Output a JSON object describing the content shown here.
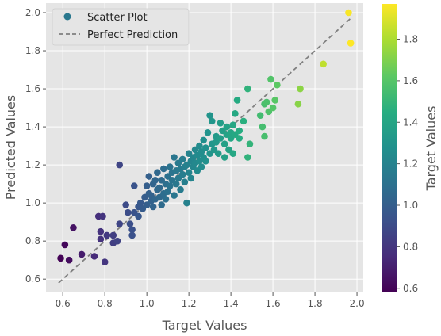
{
  "chart_data": {
    "type": "scatter",
    "xlabel": "Target Values",
    "ylabel": "Predicted Values",
    "xlim": [
      0.52,
      2.03
    ],
    "ylim": [
      0.53,
      2.05
    ],
    "x_ticks": [
      0.6,
      0.8,
      1.0,
      1.2,
      1.4,
      1.6,
      1.8,
      2.0
    ],
    "y_ticks": [
      0.6,
      0.8,
      1.0,
      1.2,
      1.4,
      1.6,
      1.8,
      2.0
    ],
    "grid": true,
    "legend_position": "top-left",
    "legend": [
      "Scatter Plot",
      "Perfect Prediction"
    ],
    "series": [
      {
        "name": "Scatter Plot",
        "type": "scatter",
        "colormap": "viridis",
        "color_by": "x",
        "points": [
          [
            0.59,
            0.71
          ],
          [
            0.61,
            0.78
          ],
          [
            0.63,
            0.7
          ],
          [
            0.65,
            0.87
          ],
          [
            0.69,
            0.73
          ],
          [
            0.75,
            0.72
          ],
          [
            0.77,
            0.93
          ],
          [
            0.78,
            0.85
          ],
          [
            0.78,
            0.81
          ],
          [
            0.79,
            0.93
          ],
          [
            0.8,
            0.69
          ],
          [
            0.81,
            0.83
          ],
          [
            0.84,
            0.83
          ],
          [
            0.84,
            0.79
          ],
          [
            0.86,
            0.8
          ],
          [
            0.87,
            0.89
          ],
          [
            0.87,
            1.2
          ],
          [
            0.9,
            0.99
          ],
          [
            0.91,
            0.95
          ],
          [
            0.92,
            0.89
          ],
          [
            0.93,
            0.86
          ],
          [
            0.93,
            0.83
          ],
          [
            0.94,
            1.09
          ],
          [
            0.94,
            0.95
          ],
          [
            0.96,
            0.93
          ],
          [
            0.96,
            0.98
          ],
          [
            0.97,
            1.0
          ],
          [
            0.98,
            0.97
          ],
          [
            0.99,
            1.03
          ],
          [
            1.0,
            1.09
          ],
          [
            1.0,
            0.99
          ],
          [
            1.01,
            1.05
          ],
          [
            1.01,
            1.14
          ],
          [
            1.02,
            1.01
          ],
          [
            1.02,
            1.04
          ],
          [
            1.03,
            0.98
          ],
          [
            1.03,
            1.1
          ],
          [
            1.04,
            1.12
          ],
          [
            1.04,
            1.02
          ],
          [
            1.05,
            1.07
          ],
          [
            1.05,
            1.16
          ],
          [
            1.06,
            1.03
          ],
          [
            1.06,
            1.08
          ],
          [
            1.07,
            0.99
          ],
          [
            1.07,
            1.12
          ],
          [
            1.08,
            1.05
          ],
          [
            1.08,
            1.18
          ],
          [
            1.09,
            1.1
          ],
          [
            1.09,
            1.02
          ],
          [
            1.1,
            1.14
          ],
          [
            1.1,
            1.06
          ],
          [
            1.11,
            1.19
          ],
          [
            1.11,
            1.09
          ],
          [
            1.12,
            1.12
          ],
          [
            1.12,
            1.16
          ],
          [
            1.13,
            1.24
          ],
          [
            1.13,
            1.04
          ],
          [
            1.14,
            1.1
          ],
          [
            1.14,
            1.17
          ],
          [
            1.15,
            1.13
          ],
          [
            1.15,
            1.21
          ],
          [
            1.16,
            1.07
          ],
          [
            1.16,
            1.18
          ],
          [
            1.17,
            1.15
          ],
          [
            1.17,
            1.23
          ],
          [
            1.18,
            1.19
          ],
          [
            1.18,
            1.11
          ],
          [
            1.19,
            1.2
          ],
          [
            1.19,
            1.0
          ],
          [
            1.2,
            1.26
          ],
          [
            1.2,
            1.16
          ],
          [
            1.21,
            1.22
          ],
          [
            1.21,
            1.13
          ],
          [
            1.22,
            1.24
          ],
          [
            1.22,
            1.19
          ],
          [
            1.23,
            1.28
          ],
          [
            1.23,
            1.21
          ],
          [
            1.24,
            1.17
          ],
          [
            1.24,
            1.25
          ],
          [
            1.25,
            1.3
          ],
          [
            1.25,
            1.22
          ],
          [
            1.26,
            1.27
          ],
          [
            1.26,
            1.19
          ],
          [
            1.27,
            1.24
          ],
          [
            1.27,
            1.33
          ],
          [
            1.28,
            1.29
          ],
          [
            1.28,
            1.22
          ],
          [
            1.29,
            1.37
          ],
          [
            1.3,
            1.26
          ],
          [
            1.3,
            1.46
          ],
          [
            1.31,
            1.31
          ],
          [
            1.31,
            1.43
          ],
          [
            1.32,
            1.28
          ],
          [
            1.33,
            1.35
          ],
          [
            1.33,
            1.32
          ],
          [
            1.34,
            1.26
          ],
          [
            1.35,
            1.34
          ],
          [
            1.35,
            1.42
          ],
          [
            1.36,
            1.38
          ],
          [
            1.37,
            1.31
          ],
          [
            1.37,
            1.24
          ],
          [
            1.38,
            1.36
          ],
          [
            1.38,
            1.4
          ],
          [
            1.39,
            1.28
          ],
          [
            1.4,
            1.34
          ],
          [
            1.4,
            1.37
          ],
          [
            1.41,
            1.26
          ],
          [
            1.41,
            1.41
          ],
          [
            1.42,
            1.47
          ],
          [
            1.42,
            1.36
          ],
          [
            1.43,
            1.54
          ],
          [
            1.44,
            1.38
          ],
          [
            1.44,
            1.34
          ],
          [
            1.46,
            1.43
          ],
          [
            1.48,
            1.6
          ],
          [
            1.48,
            1.24
          ],
          [
            1.49,
            1.31
          ],
          [
            1.54,
            1.46
          ],
          [
            1.55,
            1.4
          ],
          [
            1.56,
            1.52
          ],
          [
            1.56,
            1.35
          ],
          [
            1.57,
            1.53
          ],
          [
            1.58,
            1.48
          ],
          [
            1.59,
            1.65
          ],
          [
            1.6,
            1.5
          ],
          [
            1.61,
            1.54
          ],
          [
            1.62,
            1.62
          ],
          [
            1.72,
            1.52
          ],
          [
            1.73,
            1.6
          ],
          [
            1.84,
            1.73
          ],
          [
            1.96,
            2.0
          ],
          [
            1.97,
            1.84
          ]
        ]
      },
      {
        "name": "Perfect Prediction",
        "type": "line",
        "style": "dashed",
        "color": "#808080",
        "points": [
          [
            0.58,
            0.58
          ],
          [
            1.97,
            1.97
          ]
        ]
      }
    ],
    "colorbar": {
      "label": "Target Values",
      "range": [
        0.58,
        1.97
      ],
      "ticks": [
        0.6,
        0.8,
        1.0,
        1.2,
        1.4,
        1.6,
        1.8
      ]
    }
  },
  "colors": {
    "plot_background": "#e5e5e5",
    "grid": "#ffffff",
    "text": "#555555",
    "diagonal": "#808080"
  }
}
